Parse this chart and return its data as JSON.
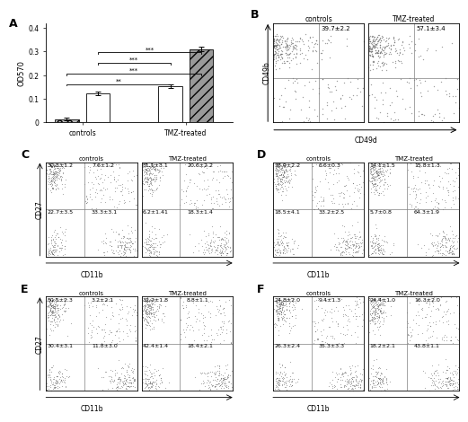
{
  "bar_values": [
    0.013,
    0.122,
    0.153,
    0.31
  ],
  "bar_errors": [
    0.005,
    0.008,
    0.007,
    0.01
  ],
  "bar_groups": [
    "controls",
    "TMZ-treated"
  ],
  "ylabel_A": "OD570",
  "ylim_A": [
    0,
    0.4
  ],
  "yticks_A": [
    0,
    0.1,
    0.2,
    0.3,
    0.4
  ],
  "panel_labels": [
    "A",
    "B",
    "C",
    "D",
    "E",
    "F"
  ],
  "B_title_left": "controls",
  "B_title_right": "TMZ-treated",
  "B_val_left": "39.7±2.2",
  "B_val_right": "57.1±3.4",
  "B_xlabel": "CD49d",
  "B_ylabel": "CD49b",
  "C_title_left": "controls",
  "C_title_right": "TMZ-treated",
  "C_vals_left": [
    "30.3±1.2",
    "7.6±1.2",
    "22.7±3.5",
    "33.3±3.1"
  ],
  "C_vals_right": [
    "51.1±3.1",
    "20.6±2.2",
    "6.2±1.41",
    "18.3±1.4"
  ],
  "C_xlabel": "CD11b",
  "C_ylabel": "CD27",
  "D_title_left": "controls",
  "D_title_right": "TMZ-treated",
  "D_vals_left": [
    "38.9±2.2",
    "6.6±0.3",
    "18.5±4.1",
    "33.2±2.5"
  ],
  "D_vals_right": [
    "14.1±1.5",
    "15.8±1.3",
    "5.7±0.8",
    "64.3±1.9"
  ],
  "D_xlabel": "CD11b",
  "E_title_left": "controls",
  "E_title_right": "TMZ-treated",
  "E_vals_left": [
    "50.5±2.3",
    "3.2±2.1",
    "30.4±3.1",
    "11.8±3.0"
  ],
  "E_vals_right": [
    "32.2±1.8",
    "8.8±1.1",
    "42.4±1.4",
    "18.4±2.1"
  ],
  "E_xlabel": "CD11b",
  "E_ylabel": "CD27",
  "F_title_left": "controls",
  "F_title_right": "TMZ-treated",
  "F_vals_left": [
    "24.8±2.0",
    "9.4±1.3",
    "26.3±2.4",
    "35.3±3.3"
  ],
  "F_vals_right": [
    "24.4±1.0",
    "16.3±2.0",
    "18.2±2.1",
    "43.8±1.1"
  ],
  "F_xlabel": "CD11b",
  "dot_color": "#555555"
}
